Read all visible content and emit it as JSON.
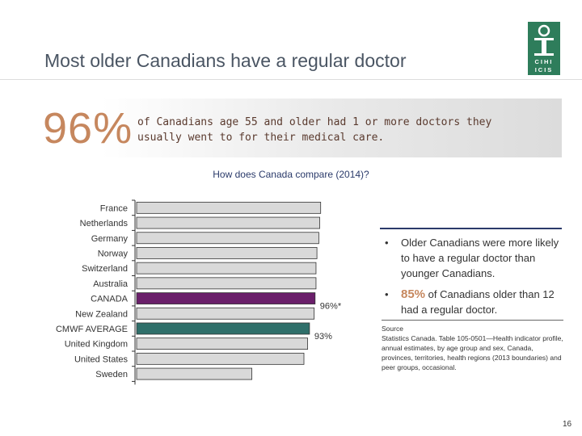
{
  "slide": {
    "title": "Most older Canadians have a regular doctor",
    "page_number": "16"
  },
  "logo": {
    "lines": [
      "CIHI",
      "ICIS"
    ],
    "brand_color": "#2e7d5b"
  },
  "headline": {
    "value": "96%",
    "text": "of Canadians age 55 and older had 1 or more doctors they usually went to for their medical care."
  },
  "bullets": [
    {
      "highlight": "",
      "text": "Older Canadians were more likely to have a regular doctor than younger Canadians."
    },
    {
      "highlight": "85%",
      "text": " of Canadians older than 12 had a regular doctor."
    }
  ],
  "source": {
    "label": "Source",
    "text": "Statistics Canada. Table 105-0501—Health indicator profile, annual estimates, by age group and sex, Canada, provinces, territories, health regions (2013 boundaries) and peer groups, occasional."
  },
  "colors": {
    "default_bar": "#d9d9d9",
    "canada_bar": "#6a1f6a",
    "average_bar": "#2f6f6a",
    "accent": "#c6875e",
    "navy": "#2a3a6a"
  },
  "chart_data": {
    "type": "bar",
    "orientation": "horizontal",
    "title": "How does Canada compare (2014)?",
    "xlim": [
      0,
      100
    ],
    "categories": [
      "France",
      "Netherlands",
      "Germany",
      "Norway",
      "Switzerland",
      "Australia",
      "CANADA",
      "New Zealand",
      "CMWF AVERAGE",
      "United Kingdom",
      "United States",
      "Sweden"
    ],
    "values": [
      99,
      98.5,
      98,
      97,
      96.5,
      96.5,
      96,
      95.5,
      93,
      92,
      90,
      62
    ],
    "bar_colors": [
      "default",
      "default",
      "default",
      "default",
      "default",
      "default",
      "canada",
      "default",
      "average",
      "default",
      "default",
      "default"
    ],
    "data_labels": [
      "",
      "",
      "",
      "",
      "",
      "",
      "96%*",
      "",
      "93%",
      "",
      "",
      ""
    ]
  }
}
